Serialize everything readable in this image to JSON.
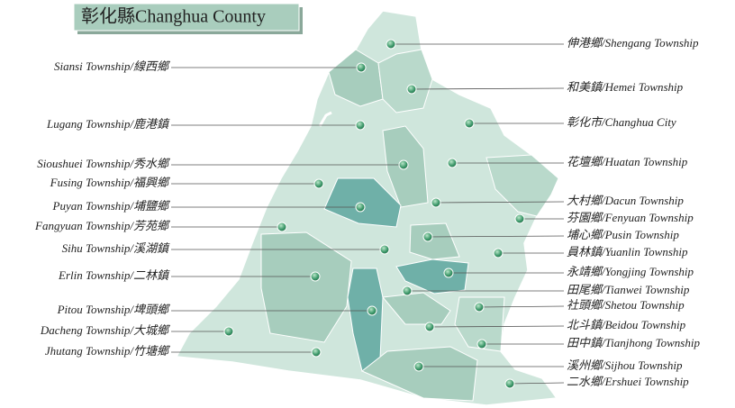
{
  "title": "彰化縣Changhua County",
  "left_labels": [
    "Siansi Township/線西鄉",
    "Lugang Township/鹿港鎮",
    "Sioushuei Township/秀水鄉",
    "Fusing Township/福興鄉",
    "Puyan Township/埔鹽鄉",
    "Fangyuan Township/芳苑鄉",
    "Sihu Township/溪湖鎮",
    "Erlin Township/二林鎮",
    "Pitou Township/埤頭鄉",
    "Dacheng Township/大城鄉",
    "Jhutang Township/竹塘鄉"
  ],
  "right_labels": [
    "伸港鄉/Shengang Township",
    "和美鎮/Hemei Township",
    "彰化市/Changhua City",
    "花壇鄉/Huatan Township",
    "大村鄉/Dacun Township",
    "芬園鄉/Fenyuan Township",
    "埔心鄉/Pusin Township",
    "員林鎮/Yuanlin Township",
    "永靖鄉/Yongjing Township",
    "田尾鄉/Tianwei Township",
    "社頭鄉/Shetou Township",
    "北斗鎮/Beidou Township",
    "田中鎮/Tianjhong Township",
    "溪州鄉/Sijhou Township",
    "二水鄉/Ershuei Township"
  ]
}
